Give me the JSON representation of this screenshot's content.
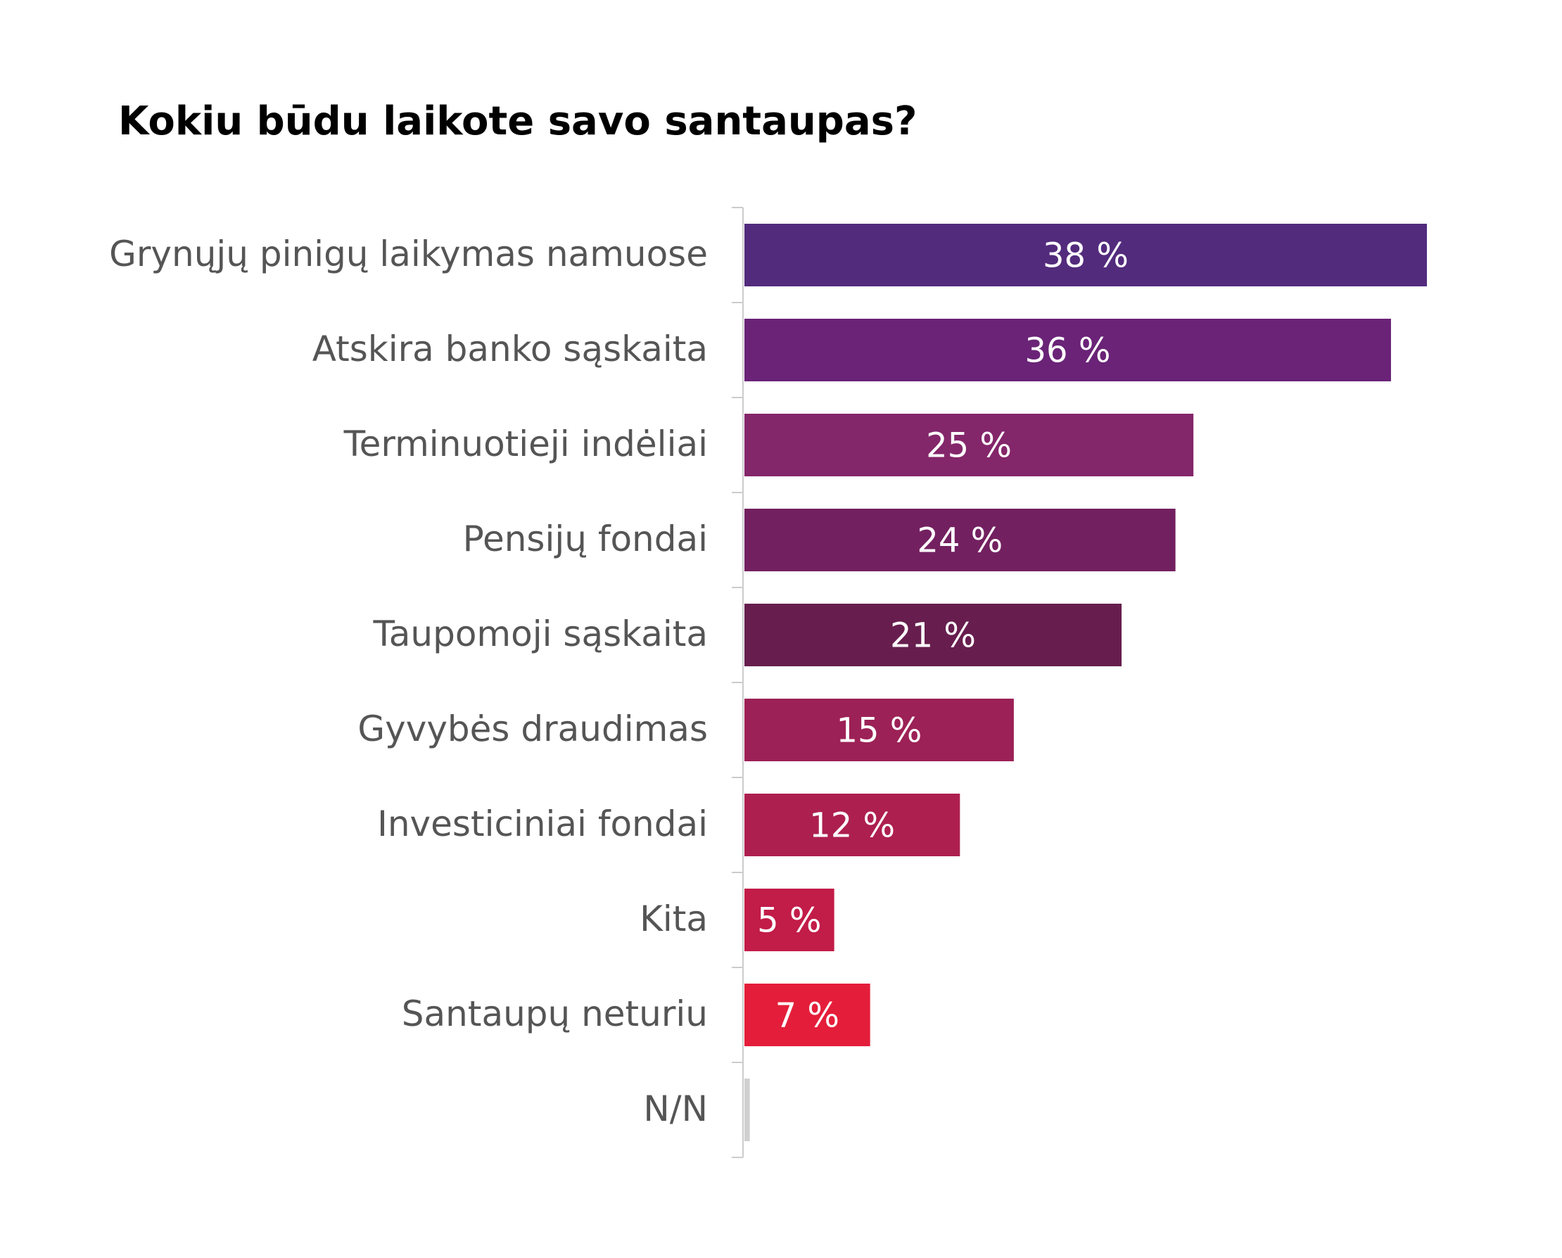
{
  "chart_data": {
    "type": "bar",
    "orientation": "horizontal",
    "title": "Kokiu būdu laikote savo santaupas?",
    "xlabel": "",
    "ylabel": "",
    "xlim": [
      0,
      38
    ],
    "grid": false,
    "legend": "none",
    "value_suffix": " %",
    "categories": [
      "Grynųjų pinigų laikymas namuose",
      "Atskira banko sąskaita",
      "Terminuotieji indėliai",
      "Pensijų fondai",
      "Taupomoji sąskaita",
      "Gyvybės draudimas",
      "Investiciniai fondai",
      "Kita",
      "Santaupų neturiu",
      "N/N"
    ],
    "values": [
      38,
      36,
      25,
      24,
      21,
      15,
      12,
      5,
      7,
      0.3
    ],
    "value_labels": [
      "38 %",
      "36 %",
      "25 %",
      "24 %",
      "21 %",
      "15 %",
      "12 %",
      "5 %",
      "7 %",
      ""
    ],
    "colors": [
      "#532b7d",
      "#6a2377",
      "#84266a",
      "#732060",
      "#671e4e",
      "#9c2156",
      "#ad1f4f",
      "#c21c48",
      "#e41e3a",
      "#d0d0d0"
    ],
    "label_color": "#555555",
    "value_label_color": "#ffffff",
    "axis_color": "#cccccc"
  }
}
